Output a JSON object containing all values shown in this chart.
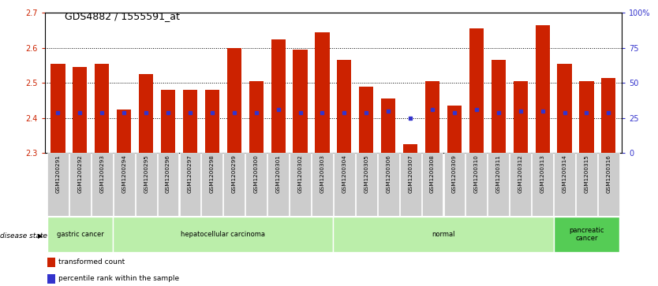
{
  "title": "GDS4882 / 1555591_at",
  "samples": [
    "GSM1200291",
    "GSM1200292",
    "GSM1200293",
    "GSM1200294",
    "GSM1200295",
    "GSM1200296",
    "GSM1200297",
    "GSM1200298",
    "GSM1200299",
    "GSM1200300",
    "GSM1200301",
    "GSM1200302",
    "GSM1200303",
    "GSM1200304",
    "GSM1200305",
    "GSM1200306",
    "GSM1200307",
    "GSM1200308",
    "GSM1200309",
    "GSM1200310",
    "GSM1200311",
    "GSM1200312",
    "GSM1200313",
    "GSM1200314",
    "GSM1200315",
    "GSM1200316"
  ],
  "bar_tops": [
    2.555,
    2.545,
    2.555,
    2.425,
    2.525,
    2.48,
    2.48,
    2.48,
    2.6,
    2.505,
    2.625,
    2.595,
    2.645,
    2.565,
    2.49,
    2.455,
    2.325,
    2.505,
    2.435,
    2.655,
    2.565,
    2.505,
    2.665,
    2.555,
    2.505,
    2.515
  ],
  "blue_markers": [
    2.415,
    2.415,
    2.415,
    2.415,
    2.415,
    2.415,
    2.415,
    2.415,
    2.415,
    2.415,
    2.425,
    2.415,
    2.415,
    2.415,
    2.415,
    2.42,
    2.4,
    2.425,
    2.415,
    2.425,
    2.415,
    2.42,
    2.42,
    2.415,
    2.415,
    2.415
  ],
  "bar_bottom": 2.3,
  "y_min": 2.3,
  "y_max": 2.7,
  "y_ticks_left": [
    2.3,
    2.4,
    2.5,
    2.6,
    2.7
  ],
  "grid_values": [
    2.4,
    2.5,
    2.6
  ],
  "bar_color": "#cc2200",
  "blue_color": "#3333cc",
  "tick_bg_color": "#cccccc",
  "group_light_color": "#bbeeaa",
  "group_dark_color": "#55cc55",
  "groups": [
    {
      "label": "gastric cancer",
      "start": 0,
      "end": 2,
      "dark": false
    },
    {
      "label": "hepatocellular carcinoma",
      "start": 3,
      "end": 12,
      "dark": false
    },
    {
      "label": "normal",
      "start": 13,
      "end": 22,
      "dark": false
    },
    {
      "label": "pancreatic\ncancer",
      "start": 23,
      "end": 25,
      "dark": true
    }
  ],
  "legend_red_label": "transformed count",
  "legend_blue_label": "percentile rank within the sample"
}
